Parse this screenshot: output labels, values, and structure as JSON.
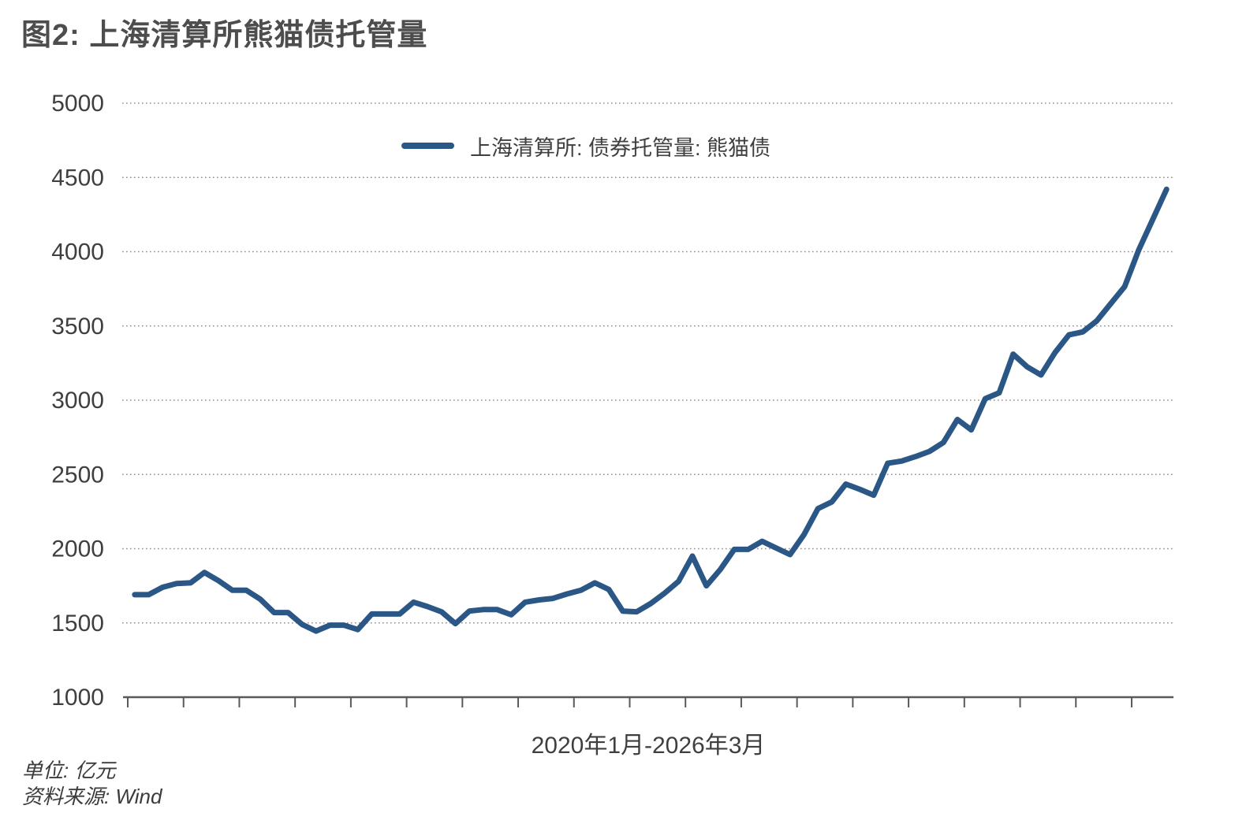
{
  "header": {
    "title": "图2: 上海清算所熊猫债托管量"
  },
  "chart_data": {
    "type": "line",
    "title": "图2: 上海清算所熊猫债托管量",
    "xlabel": "2020年1月-2026年3月",
    "ylabel": "",
    "unit": "亿元",
    "source": "Wind",
    "ylim": [
      1000,
      5000
    ],
    "yticks": [
      1000,
      1500,
      2000,
      2500,
      3000,
      3500,
      4000,
      4500,
      5000
    ],
    "x_start_label": "2020年1月",
    "x_end_label": "2026年3月",
    "x_frequency": "monthly",
    "n_points": 75,
    "x_tick_every_n_months": 4,
    "grid": "horizontal-dotted",
    "legend_position": "top-center",
    "series": [
      {
        "name": "上海清算所: 债券托管量: 熊猫债",
        "color": "#2B5786",
        "values": [
          1690,
          1690,
          1740,
          1765,
          1770,
          1840,
          1785,
          1720,
          1720,
          1660,
          1570,
          1570,
          1490,
          1445,
          1485,
          1485,
          1455,
          1560,
          1560,
          1560,
          1640,
          1610,
          1575,
          1495,
          1580,
          1590,
          1590,
          1555,
          1640,
          1655,
          1665,
          1695,
          1720,
          1770,
          1725,
          1580,
          1575,
          1630,
          1700,
          1780,
          1950,
          1750,
          1860,
          1995,
          1995,
          2050,
          2005,
          1960,
          2095,
          2270,
          2315,
          2435,
          2400,
          2360,
          2575,
          2590,
          2620,
          2655,
          2715,
          2870,
          2800,
          3010,
          3050,
          3310,
          3225,
          3170,
          3320,
          3440,
          3460,
          3535,
          3650,
          3765,
          4010,
          4215,
          4420
        ]
      }
    ]
  },
  "footer": {
    "unit_note": "单位: 亿元",
    "source_note": "资料来源: Wind"
  }
}
